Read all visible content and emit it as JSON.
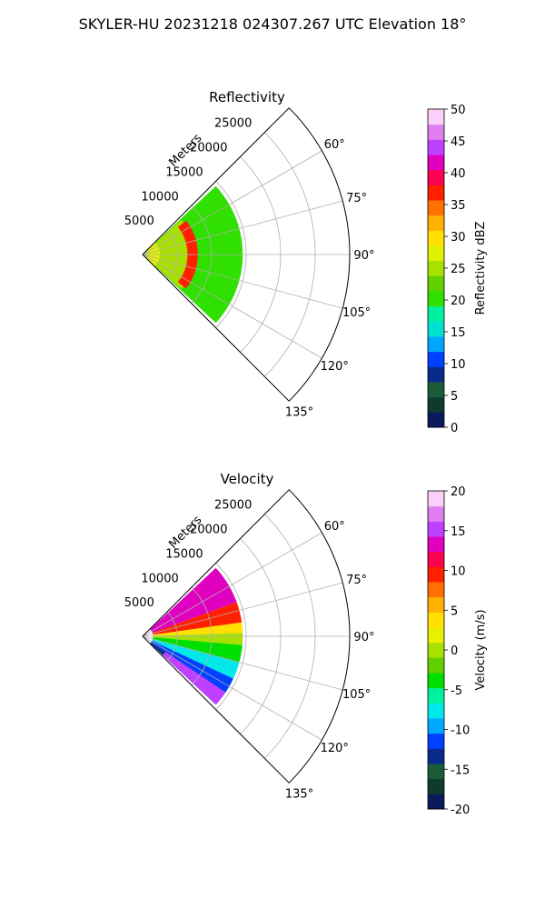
{
  "figure_title": "SKYLER-HU  20231218  024307.267 UTC Elevation 18°",
  "chart_data": [
    {
      "type": "heatmap",
      "subtype": "polar-sector",
      "title": "Reflectivity",
      "radial_label": "Meters",
      "radial_ticks": [
        5000,
        10000,
        15000,
        20000,
        25000
      ],
      "radial_range": [
        0,
        30000
      ],
      "azimuth_range_deg": [
        45,
        135
      ],
      "azimuth_ticks_deg": [
        60,
        75,
        90,
        105,
        120,
        135
      ],
      "grid": true,
      "data_extent_m": 15000,
      "colorbar": {
        "label": "Reflectivity dBZ",
        "range": [
          0,
          50
        ],
        "ticks": [
          0,
          5,
          10,
          15,
          20,
          25,
          30,
          35,
          40,
          45,
          50
        ],
        "colors": [
          "#0a1a5c",
          "#0f3a2e",
          "#1a5c3a",
          "#0a2a8a",
          "#0040ff",
          "#00a8ff",
          "#00e0d0",
          "#00f0a0",
          "#30e000",
          "#60d000",
          "#a8e000",
          "#e0f000",
          "#ffe000",
          "#ffb000",
          "#ff7000",
          "#ff2000",
          "#ff0050",
          "#e000c0",
          "#c040ff",
          "#e080f0",
          "#f8d0f8"
        ]
      },
      "features": [
        {
          "name": "background echo",
          "level_dbz": 20,
          "r_min": 1500,
          "r_max": 14500,
          "az": [
            47,
            133
          ]
        },
        {
          "name": "inner band",
          "level_dbz": 25,
          "r_min": 1500,
          "r_max": 7500,
          "az": [
            48,
            132
          ]
        },
        {
          "name": "bright band ring",
          "level_dbz": 36,
          "r_min": 6500,
          "r_max": 8000,
          "az": [
            52,
            128
          ]
        },
        {
          "name": "near echo",
          "level_dbz": 27,
          "r_min": 0,
          "r_max": 2500,
          "az": [
            47,
            133
          ]
        }
      ]
    },
    {
      "type": "heatmap",
      "subtype": "polar-sector",
      "title": "Velocity",
      "radial_label": "Meters",
      "radial_ticks": [
        5000,
        10000,
        15000,
        20000,
        25000
      ],
      "radial_range": [
        0,
        30000
      ],
      "azimuth_range_deg": [
        45,
        135
      ],
      "azimuth_ticks_deg": [
        60,
        75,
        90,
        105,
        120,
        135
      ],
      "grid": true,
      "data_extent_m": 15000,
      "colorbar": {
        "label": "Velocity (m/s)",
        "range": [
          -20,
          20
        ],
        "ticks": [
          -20,
          -15,
          -10,
          -5,
          0,
          5,
          10,
          15,
          20
        ],
        "colors": [
          "#0a1a5c",
          "#0f3a2e",
          "#1a5c3a",
          "#0a2a8a",
          "#0040ff",
          "#00a8ff",
          "#00e8e8",
          "#00f0a0",
          "#00e000",
          "#60d000",
          "#a8e000",
          "#e8f000",
          "#ffe000",
          "#ffb000",
          "#ff7000",
          "#ff2000",
          "#ff0050",
          "#e000c0",
          "#c040ff",
          "#e080f0",
          "#f8d0f8"
        ]
      },
      "features": [
        {
          "name": "outbound north",
          "level_ms": 14,
          "r_min": 1500,
          "r_max": 14500,
          "az": [
            47,
            70
          ]
        },
        {
          "name": "outbound mid",
          "level_ms": 9,
          "r_min": 1500,
          "r_max": 14500,
          "az": [
            70,
            82
          ]
        },
        {
          "name": "outbound near axis",
          "level_ms": 4,
          "r_min": 1500,
          "r_max": 14500,
          "az": [
            82,
            88
          ]
        },
        {
          "name": "near zero",
          "level_ms": 0,
          "r_min": 1500,
          "r_max": 14500,
          "az": [
            88,
            95
          ]
        },
        {
          "name": "inbound weak",
          "level_ms": -4,
          "r_min": 1500,
          "r_max": 14500,
          "az": [
            95,
            105
          ]
        },
        {
          "name": "inbound",
          "level_ms": -8,
          "r_min": 1500,
          "r_max": 14500,
          "az": [
            105,
            115
          ]
        },
        {
          "name": "inbound strong",
          "level_ms": -12,
          "r_min": 1500,
          "r_max": 14500,
          "az": [
            115,
            125
          ]
        },
        {
          "name": "inbound far south",
          "level_ms": -14,
          "r_min": 1500,
          "r_max": 14500,
          "az": [
            125,
            133
          ]
        },
        {
          "name": "folded south",
          "level_ms": 16,
          "r_min": 4000,
          "r_max": 14500,
          "az": [
            124,
            133
          ]
        }
      ]
    }
  ]
}
